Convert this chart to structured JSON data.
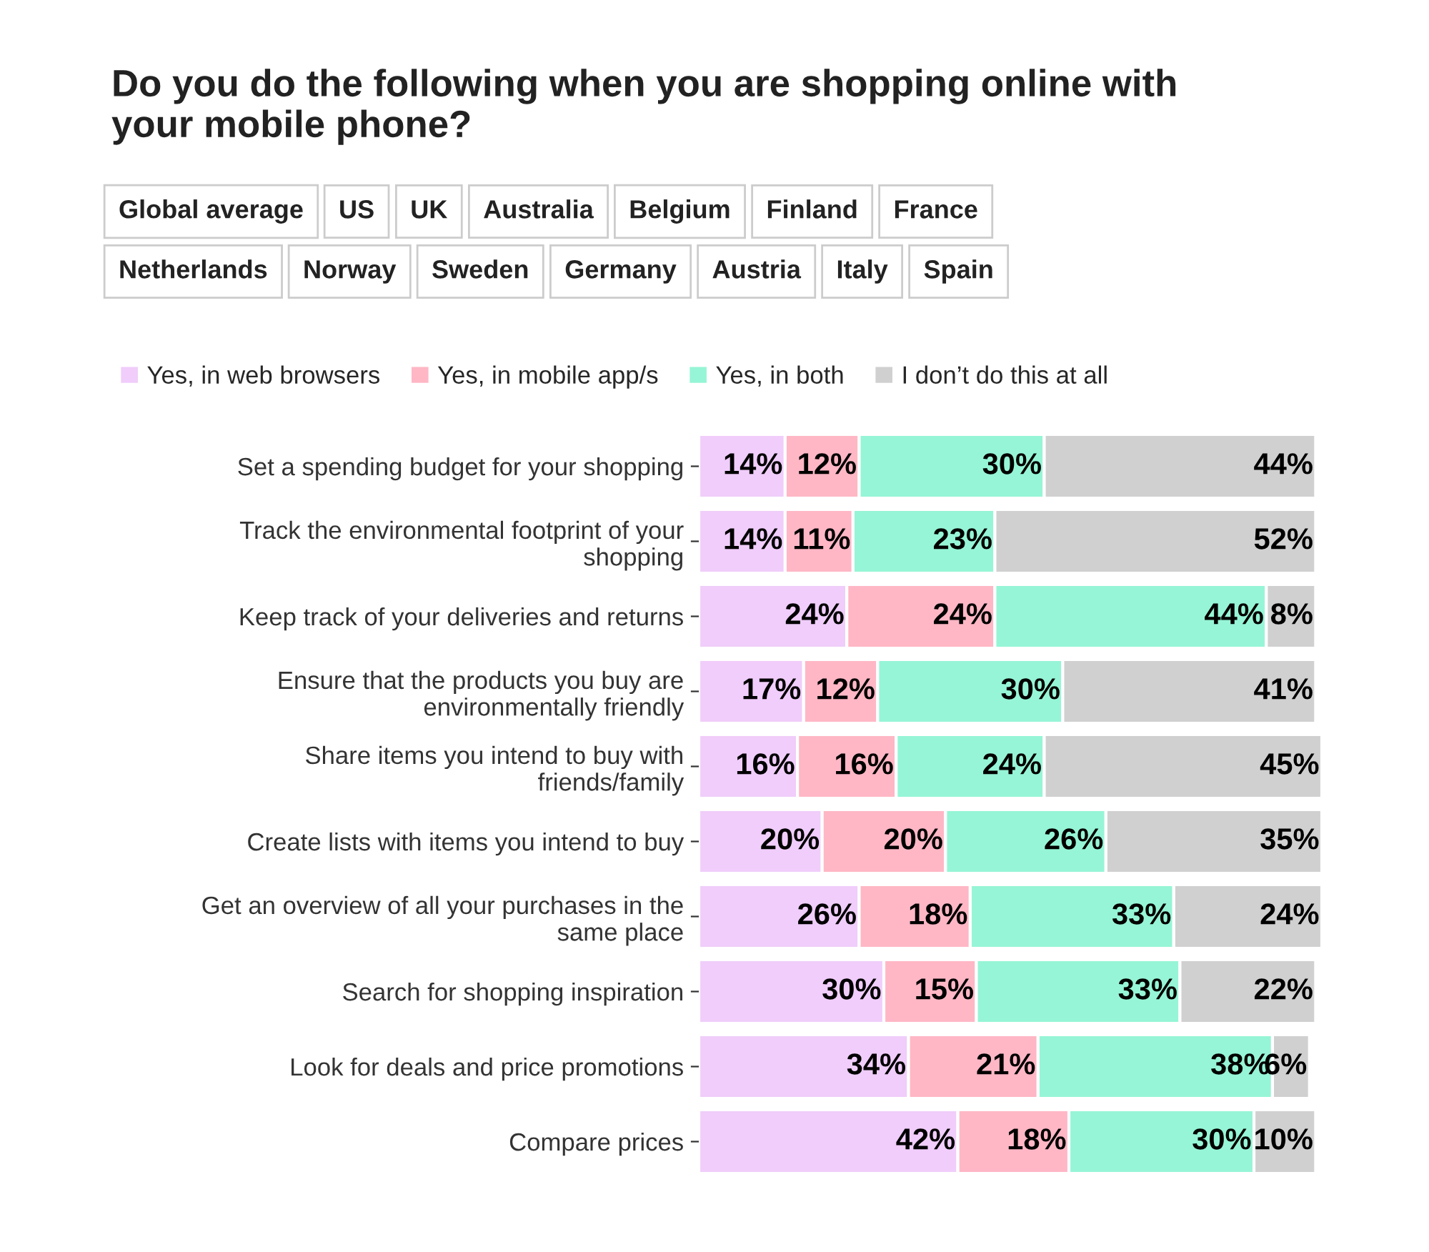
{
  "chart_data": {
    "type": "bar",
    "orientation": "horizontal",
    "stacked": true,
    "title": "Do you do the following when you are shopping online with\nyour mobile phone?",
    "annotations": [
      "Global average",
      "US",
      "UK",
      "Australia",
      "Belgium",
      "Finland",
      "France",
      "Netherlands",
      "Norway",
      "Sweden",
      "Germany",
      "Austria",
      "Italy",
      "Spain"
    ],
    "categories": [
      "Set a spending budget for your shopping",
      "Track the environmental footprint of your\nshopping",
      "Keep track of your deliveries and returns",
      "Ensure that the products you buy are\nenvironmentally friendly",
      "Share items you intend to buy with\nfriends/family",
      "Create lists with items you intend to buy",
      "Get an overview of all your purchases in the\nsame place",
      "Search for shopping inspiration",
      "Look for deals and price promotions",
      "Compare prices"
    ],
    "series": [
      {
        "name": "Yes, in web browsers",
        "color": "#f0cdfa",
        "values": [
          14,
          14,
          24,
          17,
          16,
          20,
          26,
          30,
          34,
          42
        ],
        "value_labels": [
          "14%",
          "14%",
          "24%",
          "17%",
          "16%",
          "20%",
          "26%",
          "30%",
          "34%",
          "42%"
        ]
      },
      {
        "name": "Yes, in mobile app/s",
        "color": "#ffb7c5",
        "values": [
          12,
          11,
          24,
          12,
          16,
          20,
          18,
          15,
          21,
          18
        ],
        "value_labels": [
          "12%",
          "11%",
          "24%",
          "12%",
          "16%",
          "20%",
          "18%",
          "15%",
          "21%",
          "18%"
        ]
      },
      {
        "name": "Yes, in both",
        "color": "#96f5d6",
        "values": [
          30,
          23,
          44,
          30,
          24,
          26,
          33,
          33,
          38,
          30
        ],
        "value_labels": [
          "30%",
          "23%",
          "44%",
          "30%",
          "24%",
          "26%",
          "33%",
          "33%",
          "38%",
          "30%"
        ]
      },
      {
        "name": "I don’t do this at all",
        "color": "#d0d0d0",
        "values": [
          44,
          52,
          8,
          41,
          45,
          35,
          24,
          22,
          6,
          10
        ],
        "value_labels": [
          "44%",
          "52%",
          "8%",
          "41%",
          "45%",
          "35%",
          "24%",
          "22%",
          "6%",
          "10%"
        ]
      }
    ],
    "xlim": [
      0,
      101
    ],
    "tick_labels": "y",
    "grid": false,
    "legend": "top left"
  }
}
